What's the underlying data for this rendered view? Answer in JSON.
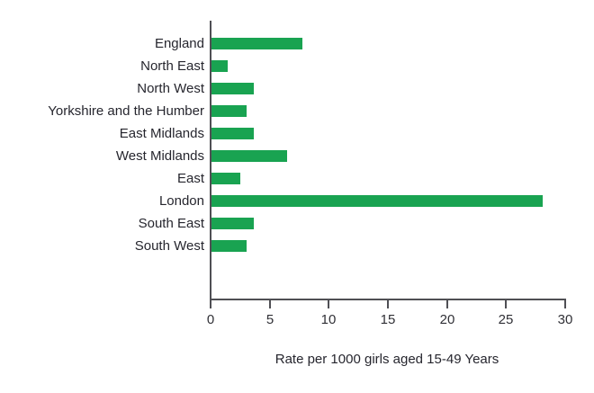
{
  "chart_data": {
    "type": "bar",
    "orientation": "horizontal",
    "categories": [
      "England",
      "North East",
      "North West",
      "Yorkshire and the Humber",
      "East Midlands",
      "West Midlands",
      "East",
      "London",
      "South East",
      "South West"
    ],
    "values": [
      7.7,
      1.4,
      3.6,
      3.0,
      3.6,
      6.4,
      2.4,
      28.0,
      3.6,
      3.0
    ],
    "xlabel": "Rate per 1000 girls aged 15-49 Years",
    "xlim": [
      0,
      30
    ],
    "xticks": [
      0,
      5,
      10,
      15,
      20,
      25,
      30
    ],
    "grid": false,
    "legend_position": "none",
    "colors": {
      "bar": "#19a351",
      "axis": "#4f4f54",
      "tick_text": "#303036",
      "label_text": "#26262e"
    }
  }
}
